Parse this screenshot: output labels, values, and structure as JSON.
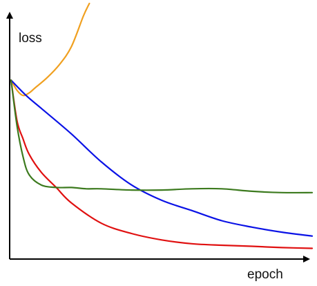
{
  "chart_data": {
    "type": "line",
    "title": "",
    "xlabel": "epoch",
    "ylabel": "loss",
    "grid": false,
    "legend": "none",
    "xlim": [
      0,
      100
    ],
    "ylim": [
      0,
      100
    ],
    "series": [
      {
        "color": "#f0a020",
        "x": [
          0,
          2,
          4,
          6,
          8,
          12,
          16,
          20,
          24,
          26
        ],
        "y": [
          70,
          66,
          64,
          65,
          67,
          71,
          76,
          83,
          95,
          100
        ]
      },
      {
        "color": "#0a12e6",
        "x": [
          0,
          5,
          10,
          20,
          30,
          40,
          50,
          60,
          70,
          80,
          90,
          100
        ],
        "y": [
          70,
          64,
          59,
          49,
          38,
          29,
          23,
          19,
          15,
          12.5,
          10.5,
          9
        ]
      },
      {
        "color": "#e01010",
        "x": [
          0,
          2,
          4,
          6,
          10,
          15,
          20,
          30,
          40,
          50,
          60,
          70,
          80,
          90,
          100
        ],
        "y": [
          70,
          54,
          47,
          41,
          34,
          28,
          22,
          14,
          10,
          7.5,
          6,
          5.4,
          5,
          4.5,
          4.2
        ]
      },
      {
        "color": "#3c7a1e",
        "x": [
          0,
          2,
          4,
          6,
          10,
          15,
          20,
          25,
          30,
          40,
          50,
          60,
          70,
          80,
          90,
          100
        ],
        "y": [
          70,
          52,
          40,
          33,
          29,
          28,
          28,
          27.5,
          27.5,
          27,
          27,
          27.5,
          27.5,
          26.5,
          26,
          26
        ]
      }
    ]
  }
}
